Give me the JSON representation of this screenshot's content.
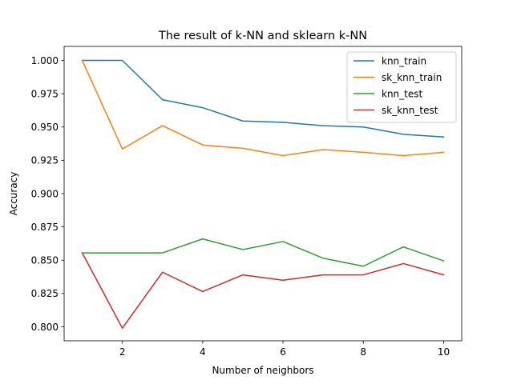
{
  "chart_data": {
    "type": "line",
    "title": "The result of k-NN and sklearn k-NN",
    "xlabel": "Number of neighbors",
    "ylabel": "Accuracy",
    "xlim": [
      0.55,
      10.45
    ],
    "ylim": [
      0.7895,
      1.0105
    ],
    "xticks": [
      2,
      4,
      6,
      8,
      10
    ],
    "xtick_labels": [
      "2",
      "4",
      "6",
      "8",
      "10"
    ],
    "yticks": [
      0.8,
      0.825,
      0.85,
      0.875,
      0.9,
      0.925,
      0.95,
      0.975,
      1.0
    ],
    "ytick_labels": [
      "0.800",
      "0.825",
      "0.850",
      "0.875",
      "0.900",
      "0.925",
      "0.950",
      "0.975",
      "1.000"
    ],
    "grid": false,
    "legend_position": "top-right",
    "x": [
      1,
      2,
      3,
      4,
      5,
      6,
      7,
      8,
      9,
      10
    ],
    "series": [
      {
        "name": "knn_train",
        "color": "#1f77b4",
        "values": [
          1.0,
          1.0,
          0.9705,
          0.9645,
          0.9545,
          0.9535,
          0.951,
          0.95,
          0.9445,
          0.9425
        ]
      },
      {
        "name": "sk_knn_train",
        "color": "#ff7f0e",
        "values": [
          1.0,
          0.9335,
          0.951,
          0.9365,
          0.934,
          0.9285,
          0.933,
          0.931,
          0.9285,
          0.931
        ]
      },
      {
        "name": "knn_test",
        "color": "#2ca02c",
        "values": [
          0.8555,
          0.8555,
          0.8555,
          0.866,
          0.858,
          0.864,
          0.8515,
          0.8455,
          0.86,
          0.8495
        ]
      },
      {
        "name": "sk_knn_test",
        "color": "#d62728",
        "values": [
          0.8555,
          0.799,
          0.841,
          0.8265,
          0.839,
          0.835,
          0.839,
          0.839,
          0.8475,
          0.839
        ]
      }
    ]
  }
}
